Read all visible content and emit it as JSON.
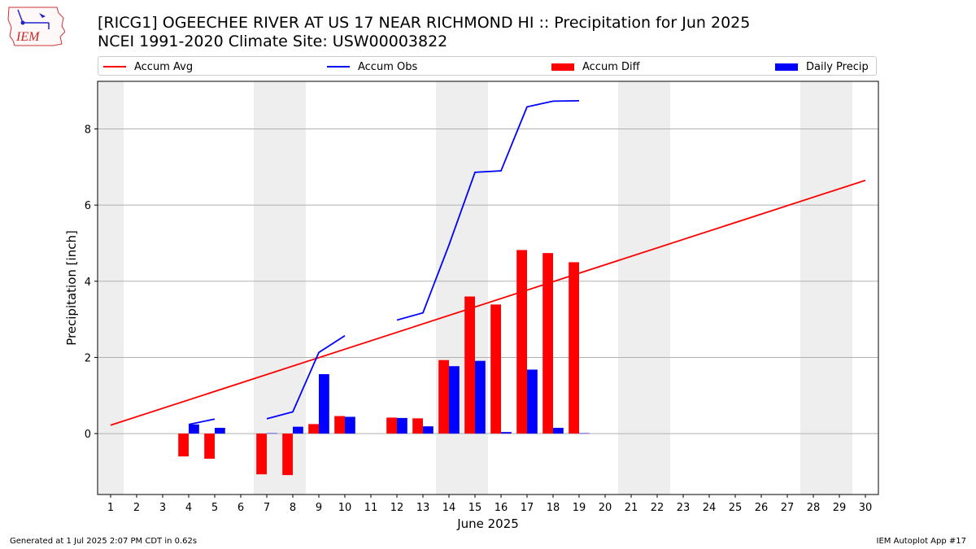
{
  "logo": {
    "text": "IEM"
  },
  "title": {
    "line1": "[RICG1] OGEECHEE RIVER AT US 17 NEAR RICHMOND HI :: Precipitation for Jun 2025",
    "line2": "NCEI 1991-2020 Climate Site: USW00003822"
  },
  "legend": [
    {
      "label": "Accum Avg",
      "kind": "line",
      "color": "#ff0000"
    },
    {
      "label": "Accum Obs",
      "kind": "line",
      "color": "#0000ff"
    },
    {
      "label": "Accum Diff",
      "kind": "bar",
      "color": "#ff0000"
    },
    {
      "label": "Daily Precip",
      "kind": "bar",
      "color": "#0000ff"
    }
  ],
  "footer": {
    "left": "Generated at 1 Jul 2025 2:07 PM CDT in 0.62s",
    "right": "IEM Autoplot App #17"
  },
  "chart_data": {
    "type": "bar",
    "xlabel": "June 2025",
    "ylabel": "Precipitation [inch]",
    "xlim": [
      0.5,
      30.5
    ],
    "ylim": [
      -1.6,
      9.25
    ],
    "x_ticks": [
      1,
      2,
      3,
      4,
      5,
      6,
      7,
      8,
      9,
      10,
      11,
      12,
      13,
      14,
      15,
      16,
      17,
      18,
      19,
      20,
      21,
      22,
      23,
      24,
      25,
      26,
      27,
      28,
      29,
      30
    ],
    "x_tick_labels": [
      "1",
      "2",
      "3",
      "4",
      "5",
      "6",
      "7",
      "8",
      "9",
      "10",
      "11",
      "12",
      "13",
      "14",
      "15",
      "16",
      "17",
      "18",
      "19",
      "20",
      "21",
      "22",
      "23",
      "24",
      "25",
      "26",
      "27",
      "28",
      "29",
      "30"
    ],
    "y_ticks": [
      0,
      2,
      4,
      6,
      8
    ],
    "y_tick_labels": [
      "0",
      "2",
      "4",
      "6",
      "8"
    ],
    "grid": "horizontal",
    "weekend_shading": [
      [
        0.5,
        1.5
      ],
      [
        6.5,
        8.5
      ],
      [
        13.5,
        15.5
      ],
      [
        20.5,
        22.5
      ],
      [
        27.5,
        29.5
      ]
    ],
    "series": [
      {
        "name": "Accum Avg",
        "kind": "line",
        "color": "#ff0000",
        "segments": [
          [
            [
              1,
              0.22
            ],
            [
              30,
              6.65
            ]
          ]
        ]
      },
      {
        "name": "Accum Obs",
        "kind": "line",
        "color": "#0000ff",
        "segments": [
          [
            [
              4,
              0.24
            ],
            [
              5,
              0.38
            ]
          ],
          [
            [
              7,
              0.39
            ],
            [
              8,
              0.57
            ],
            [
              9,
              2.13
            ],
            [
              10,
              2.57
            ]
          ],
          [
            [
              12,
              2.98
            ],
            [
              13,
              3.17
            ],
            [
              14,
              4.95
            ],
            [
              15,
              6.86
            ],
            [
              16,
              6.9
            ],
            [
              17,
              8.58
            ],
            [
              18,
              8.73
            ],
            [
              19,
              8.74
            ]
          ]
        ]
      },
      {
        "name": "Accum Diff",
        "kind": "bar",
        "color": "#ff0000",
        "days": [
          4,
          5,
          7,
          8,
          9,
          10,
          12,
          13,
          14,
          15,
          16,
          17,
          18,
          19
        ],
        "values": [
          -0.6,
          -0.66,
          -1.07,
          -1.09,
          0.25,
          0.46,
          0.42,
          0.4,
          1.93,
          3.6,
          3.39,
          4.82,
          4.74,
          4.5
        ]
      },
      {
        "name": "Daily Precip",
        "kind": "bar",
        "color": "#0000ff",
        "days": [
          4,
          5,
          7,
          8,
          9,
          10,
          12,
          13,
          14,
          15,
          16,
          17,
          18,
          19
        ],
        "values": [
          0.24,
          0.15,
          0.01,
          0.18,
          1.56,
          0.44,
          0.41,
          0.19,
          1.77,
          1.91,
          0.04,
          1.68,
          0.15,
          0.01
        ]
      }
    ]
  }
}
